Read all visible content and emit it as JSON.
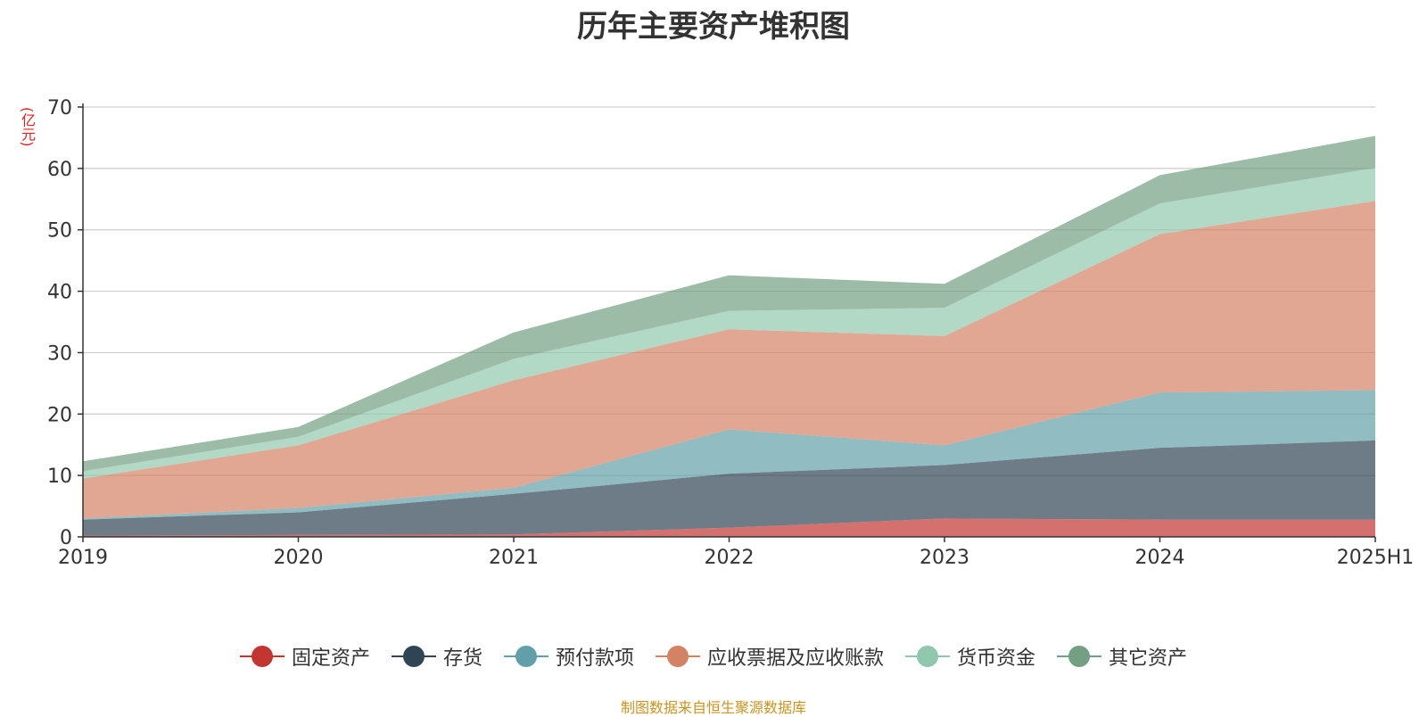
{
  "chart_data": {
    "type": "area",
    "title": "历年主要资产堆积图",
    "ylabel": "(亿元)",
    "categories": [
      "2019",
      "2020",
      "2021",
      "2022",
      "2023",
      "2024",
      "2025H1"
    ],
    "ylim": [
      0,
      70
    ],
    "yticks": [
      0,
      10,
      20,
      30,
      40,
      50,
      60,
      70
    ],
    "stacked": true,
    "grid": true,
    "legend_position": "bottom",
    "series": [
      {
        "name": "固定资产",
        "color": "#c23531",
        "values": [
          0.2,
          0.3,
          0.4,
          1.5,
          3.0,
          2.8,
          2.8
        ]
      },
      {
        "name": "存货",
        "color": "#2f4554",
        "values": [
          2.6,
          3.7,
          6.6,
          8.8,
          8.7,
          11.7,
          12.9
        ]
      },
      {
        "name": "预付款项",
        "color": "#61a0a8",
        "values": [
          0.2,
          0.7,
          1.0,
          7.2,
          3.2,
          9.0,
          8.2
        ]
      },
      {
        "name": "应收票据及应收账款",
        "color": "#d48265",
        "values": [
          6.5,
          10.2,
          17.5,
          16.3,
          17.8,
          25.8,
          30.8
        ]
      },
      {
        "name": "货币资金",
        "color": "#91c7ae",
        "values": [
          1.2,
          1.4,
          3.5,
          3.0,
          4.6,
          5.0,
          5.4
        ]
      },
      {
        "name": "其它资产",
        "color": "#749f83",
        "values": [
          1.6,
          1.6,
          4.3,
          5.8,
          3.9,
          4.6,
          5.2
        ]
      }
    ]
  },
  "source_note": "制图数据来自恒生聚源数据库"
}
